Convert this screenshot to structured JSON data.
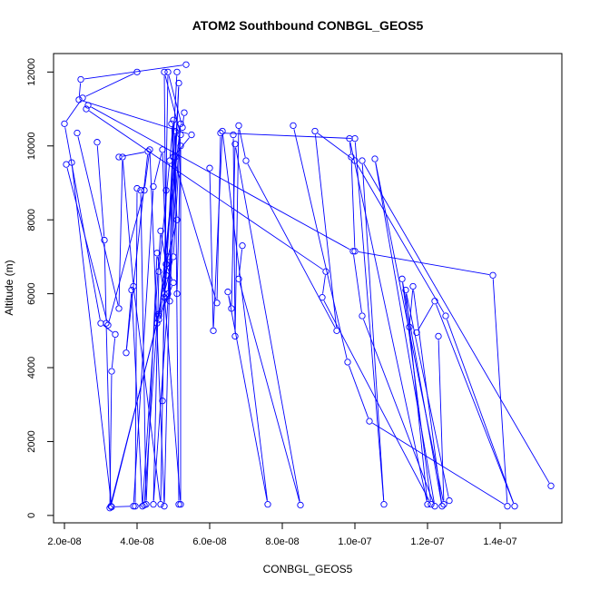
{
  "chart_data": {
    "type": "line",
    "title": "ATOM2 Southbound CONBGL_GEOS5",
    "xlabel": "CONBGL_GEOS5",
    "ylabel": "Altitude (m)",
    "xlim": [
      1.7e-08,
      1.57e-07
    ],
    "ylim": [
      -200,
      12500
    ],
    "xticks": [
      2e-08,
      4e-08,
      6e-08,
      8e-08,
      1e-07,
      1.2e-07,
      1.4e-07
    ],
    "xtick_labels": [
      "2.0e-08",
      "4.0e-08",
      "6.0e-08",
      "8.0e-08",
      "1.0e-07",
      "1.2e-07",
      "1.4e-07"
    ],
    "yticks": [
      0,
      2000,
      4000,
      6000,
      8000,
      10000,
      12000
    ],
    "ytick_labels": [
      "0",
      "2000",
      "4000",
      "6000",
      "8000",
      "10000",
      "12000"
    ],
    "series_color": "#0000ff",
    "marker": "open-circle",
    "series": [
      {
        "x": [
          5.35e-08,
          2.45e-08,
          2.4e-08,
          5.5e-08,
          5e-08,
          6.2e-08,
          6.3e-08,
          1e-07,
          1.08e-07,
          1.02e-07,
          1.54e-07
        ],
        "y": [
          12200,
          11800,
          11250,
          10300,
          9700,
          5750,
          10350,
          10200,
          300,
          9600,
          800
        ]
      },
      {
        "x": [
          4e-08,
          2.5e-08,
          2e-08,
          3e-08,
          3.4e-08,
          3.3e-08,
          3.25e-08,
          4.6e-08,
          4.85e-08,
          5.15e-08,
          4.9e-08
        ],
        "y": [
          12000,
          11300,
          10600,
          5200,
          4900,
          3900,
          200,
          5400,
          6000,
          11700,
          5800
        ]
      },
      {
        "x": [
          2.9e-08,
          3.1e-08,
          3.15e-08,
          3.28e-08,
          5e-08,
          5.2e-08,
          4.75e-08,
          4.8e-08,
          5.1e-08
        ],
        "y": [
          10100,
          7450,
          5200,
          250,
          7000,
          10300,
          12000,
          6500,
          12000
        ]
      },
      {
        "x": [
          2.35e-08,
          3.5e-08,
          3.6e-08,
          3.9e-08,
          4.65e-08,
          4.8e-08,
          4.7e-08,
          4.85e-08,
          5.25e-08,
          5.3e-08
        ],
        "y": [
          10350,
          5600,
          9700,
          6200,
          300,
          8800,
          3100,
          12000,
          10500,
          10900
        ]
      },
      {
        "x": [
          2.05e-08,
          3.2e-08,
          4.2e-08,
          4.35e-08,
          4.75e-08,
          5e-08,
          4.9e-08,
          4.6e-08,
          4.45e-08,
          5.2e-08,
          4.6e-08
        ],
        "y": [
          9500,
          5150,
          8800,
          9900,
          250,
          10700,
          9600,
          6600,
          300,
          10600,
          5450
        ]
      },
      {
        "x": [
          2.2e-08,
          3.3e-08,
          3.9e-08,
          4.45e-08,
          4.7e-08,
          4.8e-08,
          5e-08,
          4.6e-08,
          5.05e-08
        ],
        "y": [
          9550,
          230,
          250,
          8900,
          9900,
          6800,
          6300,
          5300,
          9700
        ]
      },
      {
        "x": [
          3.5e-08,
          4.3e-08,
          3.7e-08,
          3.85e-08,
          4.15e-08,
          4.65e-08,
          4.8e-08,
          5.1e-08,
          4.95e-08
        ],
        "y": [
          9700,
          9850,
          4400,
          6100,
          250,
          7700,
          6800,
          8000,
          10600
        ]
      },
      {
        "x": [
          4e-08,
          3.95e-08,
          4.2e-08,
          4.55e-08,
          4.85e-08,
          4.75e-08,
          5.05e-08,
          5.15e-08
        ],
        "y": [
          8850,
          250,
          280,
          5200,
          7000,
          5900,
          10400,
          300
        ]
      },
      {
        "x": [
          4.1e-08,
          4.25e-08,
          4.55e-08,
          4.75e-08,
          5.2e-08,
          5.2e-08,
          5.1e-08
        ],
        "y": [
          8800,
          300,
          7100,
          6000,
          300,
          10000,
          6000
        ]
      },
      {
        "x": [
          6e-08,
          6.1e-08,
          6.35e-08,
          7.6e-08,
          6.5e-08,
          6.6e-08,
          6.7e-08,
          8.5e-08,
          6.8e-08,
          6.9e-08
        ],
        "y": [
          9400,
          5000,
          10400,
          300,
          6050,
          5600,
          10050,
          280,
          6400,
          7300
        ]
      },
      {
        "x": [
          6.65e-08,
          6.7e-08,
          6.8e-08,
          7e-08,
          9.5e-08,
          8.9e-08,
          1e-07,
          1.25e-07,
          1.44e-07,
          1.22e-07,
          1.17e-07
        ],
        "y": [
          10300,
          4850,
          10550,
          9600,
          5000,
          10400,
          9600,
          5400,
          250,
          5800,
          4950
        ]
      },
      {
        "x": [
          8.3e-08,
          9.8e-08,
          1.04e-07,
          1.42e-07,
          1.38e-07,
          1e-07,
          9.9e-08,
          9.85e-08,
          1.2e-07,
          1.14e-07,
          1.26e-07
        ],
        "y": [
          10550,
          4150,
          2550,
          250,
          6500,
          7150,
          9700,
          10200,
          300,
          6100,
          400
        ]
      },
      {
        "x": [
          2.6e-08,
          9.2e-08,
          9.1e-08,
          1.21e-07,
          1.13e-07,
          1.24e-07,
          1.16e-07,
          1.15e-07
        ],
        "y": [
          11000,
          6600,
          5900,
          300,
          6400,
          250,
          6200,
          5100
        ]
      },
      {
        "x": [
          2.65e-08,
          9.95e-08,
          1.02e-07,
          1.22e-07,
          1.055e-07,
          1.245e-07,
          1.23e-07
        ],
        "y": [
          11100,
          7150,
          5400,
          250,
          9650,
          300,
          4850
        ]
      }
    ]
  }
}
